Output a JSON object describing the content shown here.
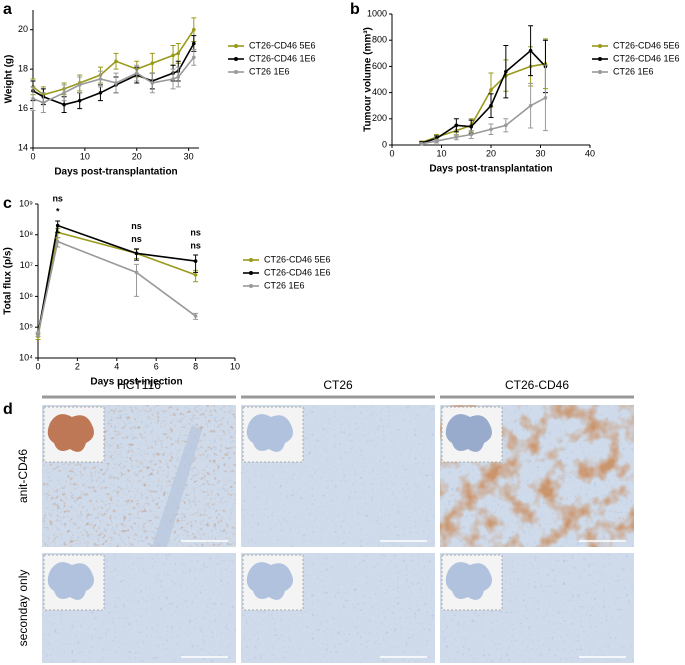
{
  "chart_data": [
    {
      "type": "line",
      "panel_label": "a",
      "x_label": "Days post-transplantation",
      "y_label": "Weight (g)",
      "xlim": [
        0,
        32
      ],
      "xticks": [
        0,
        10,
        20,
        30
      ],
      "ylim": [
        14,
        21
      ],
      "yticks": [
        14,
        16,
        18,
        20
      ],
      "x": [
        0,
        2,
        6,
        9,
        13,
        16,
        20,
        23,
        27,
        28,
        31
      ],
      "series": [
        {
          "name": "CT26-CD46 5E6",
          "color": "#9a9a1a",
          "values": [
            17.1,
            16.7,
            17.0,
            17.3,
            17.7,
            18.4,
            18.0,
            18.3,
            18.7,
            18.8,
            20.0
          ],
          "errors": [
            0.4,
            0.4,
            0.3,
            0.4,
            0.4,
            0.4,
            0.4,
            0.5,
            0.5,
            0.5,
            0.6
          ]
        },
        {
          "name": "CT26-CD46 1E6",
          "color": "#000000",
          "values": [
            16.9,
            16.6,
            16.2,
            16.4,
            16.8,
            17.2,
            17.7,
            17.4,
            17.8,
            17.9,
            19.3
          ],
          "errors": [
            0.5,
            0.4,
            0.4,
            0.4,
            0.4,
            0.4,
            0.4,
            0.4,
            0.4,
            0.5,
            0.4
          ]
        },
        {
          "name": "CT26 1E6",
          "color": "#999999",
          "values": [
            16.5,
            16.3,
            16.8,
            17.2,
            17.5,
            17.3,
            17.8,
            17.3,
            17.5,
            17.6,
            18.6
          ],
          "errors": [
            0.6,
            0.5,
            0.4,
            0.4,
            0.4,
            0.5,
            0.4,
            0.5,
            0.5,
            0.5,
            0.4
          ]
        }
      ]
    },
    {
      "type": "line",
      "panel_label": "b",
      "x_label": "Days post-transplantation",
      "y_label": "Tumour volume (mm³)",
      "xlim": [
        0,
        40
      ],
      "xticks": [
        0,
        10,
        20,
        30,
        40
      ],
      "ylim": [
        0,
        1000
      ],
      "yticks": [
        0,
        200,
        400,
        600,
        800,
        1000
      ],
      "x": [
        6,
        9,
        13,
        16,
        20,
        23,
        28,
        31
      ],
      "series": [
        {
          "name": "CT26-CD46 5E6",
          "color": "#9a9a1a",
          "values": [
            20,
            60,
            110,
            150,
            420,
            530,
            600,
            620
          ],
          "errors": [
            10,
            20,
            40,
            50,
            130,
            120,
            150,
            190
          ]
        },
        {
          "name": "CT26-CD46 1E6",
          "color": "#000000",
          "values": [
            15,
            50,
            150,
            140,
            300,
            560,
            720,
            600
          ],
          "errors": [
            10,
            20,
            50,
            50,
            90,
            200,
            190,
            200
          ]
        },
        {
          "name": "CT26 1E6",
          "color": "#999999",
          "values": [
            10,
            30,
            60,
            80,
            120,
            150,
            300,
            360
          ],
          "errors": [
            5,
            15,
            20,
            30,
            40,
            50,
            170,
            250
          ]
        }
      ]
    },
    {
      "type": "line",
      "panel_label": "c",
      "x_label": "Days post-injection",
      "y_label": "Total flux (p/s)",
      "log": true,
      "xlim": [
        0,
        10
      ],
      "xticks": [
        0,
        2,
        4,
        6,
        8,
        10
      ],
      "ylim": [
        10000,
        1000000000
      ],
      "yticks": [
        {
          "value": 10000,
          "label": "10⁴"
        },
        {
          "value": 100000,
          "label": "10⁵"
        },
        {
          "value": 1000000,
          "label": "10⁶"
        },
        {
          "value": 10000000,
          "label": "10⁷"
        },
        {
          "value": 100000000,
          "label": "10⁸"
        },
        {
          "value": 1000000000,
          "label": "10⁹"
        }
      ],
      "x": [
        0,
        1,
        5,
        8
      ],
      "series": [
        {
          "name": "CT26-CD46 5E6",
          "color": "#9a9a1a",
          "values": [
            50000,
            120000000,
            25000000,
            5000000
          ],
          "errors": [
            10000,
            40000000,
            8000000,
            2000000
          ]
        },
        {
          "name": "CT26-CD46 1E6",
          "color": "#000000",
          "values": [
            60000,
            200000000,
            25000000,
            14000000
          ],
          "errors": [
            10000,
            80000000,
            10000000,
            8000000
          ]
        },
        {
          "name": "CT26 1E6",
          "color": "#999999",
          "values": [
            60000,
            60000000,
            6000000,
            230000
          ],
          "errors": [
            10000,
            20000000,
            5000000,
            50000
          ]
        }
      ],
      "annotations": [
        {
          "x": 1,
          "labels": [
            {
              "text": "ns",
              "color": "#9a9a1a"
            },
            {
              "text": "*",
              "color": "#000000"
            }
          ]
        },
        {
          "x": 5,
          "labels": [
            {
              "text": "ns",
              "color": "#9a9a1a"
            },
            {
              "text": "ns",
              "color": "#000000"
            }
          ]
        },
        {
          "x": 8,
          "labels": [
            {
              "text": "ns",
              "color": "#9a9a1a"
            },
            {
              "text": "ns",
              "color": "#000000"
            }
          ]
        }
      ]
    }
  ],
  "histology": {
    "panel_label": "d",
    "columns": [
      "HCT116",
      "CT26",
      "CT26-CD46"
    ],
    "rows": [
      "anit-CD46",
      "seconday only"
    ]
  }
}
